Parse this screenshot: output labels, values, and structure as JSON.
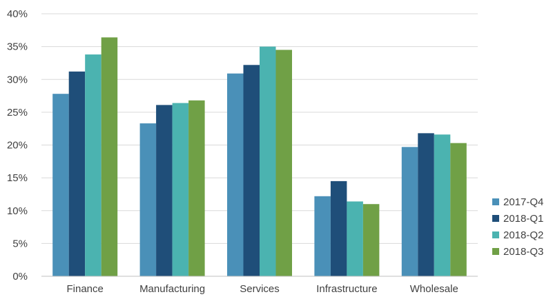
{
  "chart_data": {
    "type": "bar",
    "title": "",
    "xlabel": "",
    "ylabel": "",
    "categories": [
      "Finance",
      "Manufacturing",
      "Services",
      "Infrastructure",
      "Wholesale"
    ],
    "series": [
      {
        "name": "2017-Q4",
        "color": "#4a90b8",
        "values": [
          27.8,
          23.3,
          30.9,
          12.2,
          19.7
        ]
      },
      {
        "name": "2018-Q1",
        "color": "#1f4e79",
        "values": [
          31.2,
          26.1,
          32.2,
          14.5,
          21.8
        ]
      },
      {
        "name": "2018-Q2",
        "color": "#4bb3b0",
        "values": [
          33.8,
          26.4,
          35.0,
          11.4,
          21.6
        ]
      },
      {
        "name": "2018-Q3",
        "color": "#70a046",
        "values": [
          36.4,
          26.8,
          34.5,
          11.0,
          20.3
        ]
      }
    ],
    "ylim": [
      0,
      40
    ],
    "yticks": [
      0,
      5,
      10,
      15,
      20,
      25,
      30,
      35,
      40
    ],
    "ytick_labels": [
      "0%",
      "5%",
      "10%",
      "15%",
      "20%",
      "25%",
      "30%",
      "35%",
      "40%"
    ],
    "grid": true,
    "legend_position": "right"
  }
}
